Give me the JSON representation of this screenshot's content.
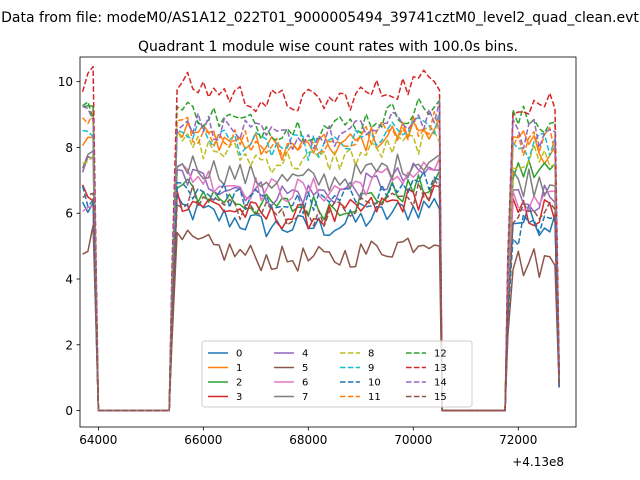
{
  "figure": {
    "suptitle": "Data from file: modeM0/AS1A12_022T01_9000005494_39741cztM0_level2_quad_clean.evt"
  },
  "chart_data": {
    "type": "line",
    "title": "Quadrant 1 module wise count rates with 100.0s bins.",
    "xlabel": "",
    "ylabel": "",
    "x_offset_label": "+4.13e8",
    "xlim": [
      63650,
      73100
    ],
    "ylim": [
      -0.5,
      10.75
    ],
    "x_ticks": [
      64000,
      66000,
      68000,
      70000,
      72000
    ],
    "x_tick_labels": [
      "64000",
      "66000",
      "68000",
      "70000",
      "72000"
    ],
    "y_ticks": [
      0,
      2,
      4,
      6,
      8,
      10
    ],
    "y_tick_labels": [
      "0",
      "2",
      "4",
      "6",
      "8",
      "10"
    ],
    "legend": {
      "placement": "lower-center",
      "columns": 4
    },
    "segments": [
      {
        "start": 63700,
        "end": 63950
      },
      {
        "start": 65400,
        "end": 70500
      },
      {
        "start": 71800,
        "end": 72750
      }
    ],
    "gaps": [
      {
        "start": 64000,
        "end": 65350
      },
      {
        "start": 70550,
        "end": 71750
      }
    ],
    "bin_seconds": 100,
    "series": [
      {
        "name": "0",
        "color": "#1f77b4",
        "style": "solid",
        "level": 5.6,
        "plateau_start": 6.2,
        "plateau_end": 5.8
      },
      {
        "name": "1",
        "color": "#ff7f0e",
        "style": "solid",
        "level": 8.0,
        "plateau_start": 8.5,
        "plateau_end": 8.0
      },
      {
        "name": "2",
        "color": "#2ca02c",
        "style": "solid",
        "level": 6.2,
        "plateau_start": 9.1,
        "plateau_end": 7.3
      },
      {
        "name": "3",
        "color": "#d62728",
        "style": "solid",
        "level": 5.9,
        "plateau_start": 6.7,
        "plateau_end": 6.0
      },
      {
        "name": "4",
        "color": "#9467bd",
        "style": "solid",
        "level": 6.6,
        "plateau_start": 7.4,
        "plateau_end": 6.5
      },
      {
        "name": "5",
        "color": "#8c564b",
        "style": "solid",
        "level": 4.6,
        "plateau_start": 5.2,
        "plateau_end": 4.5
      },
      {
        "name": "6",
        "color": "#e377c2",
        "style": "solid",
        "level": 6.7,
        "plateau_start": 6.5,
        "plateau_end": 6.2
      },
      {
        "name": "7",
        "color": "#7f7f7f",
        "style": "solid",
        "level": 7.0,
        "plateau_start": 7.7,
        "plateau_end": 7.0
      },
      {
        "name": "8",
        "color": "#bcbd22",
        "style": "dashed",
        "level": 7.6,
        "plateau_start": 7.9,
        "plateau_end": 7.7
      },
      {
        "name": "9",
        "color": "#17becf",
        "style": "dashed",
        "level": 8.0,
        "plateau_start": 8.4,
        "plateau_end": 8.0
      },
      {
        "name": "10",
        "color": "#1f77b4",
        "style": "dashed",
        "level": 6.3,
        "plateau_start": 6.6,
        "plateau_end": 5.5
      },
      {
        "name": "11",
        "color": "#ff7f0e",
        "style": "dashed",
        "level": 8.1,
        "plateau_start": 8.7,
        "plateau_end": 8.2
      },
      {
        "name": "12",
        "color": "#2ca02c",
        "style": "dashed",
        "level": 8.6,
        "plateau_start": 9.3,
        "plateau_end": 8.8
      },
      {
        "name": "13",
        "color": "#d62728",
        "style": "dashed",
        "level": 9.4,
        "plateau_start": 10.1,
        "plateau_end": 9.4
      },
      {
        "name": "14",
        "color": "#9467bd",
        "style": "dashed",
        "level": 8.3,
        "plateau_start": 9.1,
        "plateau_end": 8.4
      },
      {
        "name": "15",
        "color": "#8c564b",
        "style": "dashed",
        "level": 6.0,
        "plateau_start": 6.6,
        "plateau_end": 6.0
      }
    ]
  }
}
